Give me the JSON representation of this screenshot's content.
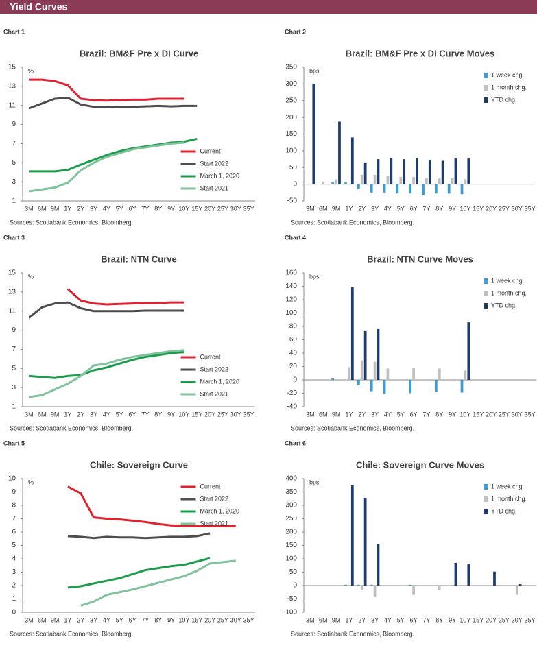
{
  "header": {
    "title": "Yield Curves"
  },
  "chart_data": [
    {
      "type": "line",
      "label": "Chart 1",
      "title": "Brazil: BM&F Pre x DI Curve",
      "y_label": "%",
      "source": "Sources: Scotiabank Economics, Bloomberg.",
      "legend": "lower right",
      "categories": [
        "3M",
        "6M",
        "9M",
        "1Y",
        "2Y",
        "3Y",
        "4Y",
        "5Y",
        "6Y",
        "7Y",
        "8Y",
        "9Y",
        "10Y",
        "15Y",
        "20Y",
        "25Y",
        "30Y",
        "35Y"
      ],
      "ylim": [
        1,
        15
      ],
      "yticks": [
        1,
        3,
        5,
        7,
        9,
        11,
        13,
        15
      ],
      "series": [
        {
          "name": "Current",
          "color": "#e3202e",
          "values": [
            13.7,
            13.7,
            13.55,
            13.1,
            11.7,
            11.55,
            11.5,
            11.55,
            11.6,
            11.6,
            11.7,
            11.7,
            11.7,
            null,
            null,
            null,
            null,
            null
          ]
        },
        {
          "name": "Start 2022",
          "color": "#4d4d4d",
          "values": [
            10.7,
            11.2,
            11.7,
            11.8,
            11.1,
            10.85,
            10.8,
            10.85,
            10.85,
            10.9,
            10.95,
            10.9,
            10.95,
            10.95,
            null,
            null,
            null,
            null
          ]
        },
        {
          "name": "March 1, 2020",
          "color": "#1a9c4a",
          "values": [
            4.1,
            4.1,
            4.1,
            4.25,
            4.8,
            5.3,
            5.8,
            6.2,
            6.5,
            6.7,
            6.9,
            7.1,
            7.2,
            7.5,
            null,
            null,
            null,
            null
          ]
        },
        {
          "name": "Start 2021",
          "color": "#7fc29b",
          "values": [
            2.0,
            2.2,
            2.4,
            2.9,
            4.2,
            5.0,
            5.6,
            6.0,
            6.4,
            6.6,
            6.8,
            7.0,
            7.1,
            null,
            null,
            null,
            null,
            null
          ]
        }
      ]
    },
    {
      "type": "bar",
      "label": "Chart 2",
      "title": "Brazil: BM&F Pre x DI Curve Moves",
      "y_label": "bps",
      "source": "Sources: Scotiabank Economics, Bloomberg.",
      "legend": "upper right",
      "categories": [
        "3M",
        "6M",
        "9M",
        "1Y",
        "2Y",
        "3Y",
        "4Y",
        "5Y",
        "6Y",
        "7Y",
        "8Y",
        "9Y",
        "10Y",
        "15Y",
        "20Y",
        "25Y",
        "30Y",
        "35Y"
      ],
      "ylim": [
        -50,
        350
      ],
      "yticks": [
        -50,
        0,
        50,
        100,
        150,
        200,
        250,
        300,
        350
      ],
      "series": [
        {
          "name": "1 week chg.",
          "color": "#3a9bd5",
          "values": [
            null,
            null,
            5,
            5,
            -15,
            -25,
            -25,
            -28,
            -28,
            -32,
            -28,
            -28,
            -30,
            null,
            null,
            null,
            null,
            null
          ]
        },
        {
          "name": "1 month chg.",
          "color": "#bfbfbf",
          "values": [
            null,
            8,
            15,
            null,
            28,
            28,
            25,
            22,
            22,
            18,
            18,
            18,
            15,
            null,
            null,
            null,
            null,
            null
          ]
        },
        {
          "name": "YTD chg.",
          "color": "#1f3c6e",
          "values": [
            300,
            null,
            187,
            140,
            65,
            75,
            78,
            75,
            78,
            73,
            70,
            77,
            77,
            null,
            null,
            null,
            null,
            null
          ]
        }
      ]
    },
    {
      "type": "line",
      "label": "Chart 3",
      "title": "Brazil: NTN Curve",
      "y_label": "%",
      "source": "Sources: Scotiabank Economics, Bloomberg.",
      "legend": "lower right",
      "categories": [
        "3M",
        "6M",
        "9M",
        "1Y",
        "2Y",
        "3Y",
        "4Y",
        "5Y",
        "6Y",
        "7Y",
        "8Y",
        "9Y",
        "10Y",
        "15Y",
        "20Y",
        "25Y",
        "30Y",
        "35Y"
      ],
      "ylim": [
        1,
        15
      ],
      "yticks": [
        1,
        3,
        5,
        7,
        9,
        11,
        13,
        15
      ],
      "series": [
        {
          "name": "Current",
          "color": "#e3202e",
          "values": [
            null,
            null,
            null,
            13.3,
            12.1,
            11.8,
            11.7,
            11.75,
            11.8,
            11.85,
            11.85,
            11.9,
            11.9,
            null,
            null,
            null,
            null,
            null
          ]
        },
        {
          "name": "Start 2022",
          "color": "#4d4d4d",
          "values": [
            10.3,
            11.4,
            11.8,
            11.9,
            11.3,
            11.0,
            11.0,
            11.0,
            11.0,
            11.05,
            11.05,
            11.05,
            11.05,
            null,
            null,
            null,
            null,
            null
          ]
        },
        {
          "name": "March 1, 2020",
          "color": "#1a9c4a",
          "values": [
            4.2,
            4.1,
            4.0,
            4.2,
            4.3,
            4.8,
            5.1,
            5.5,
            5.9,
            6.2,
            6.4,
            6.6,
            6.7,
            null,
            null,
            null,
            null,
            null
          ]
        },
        {
          "name": "Start 2021",
          "color": "#7fc29b",
          "values": [
            2.0,
            2.2,
            2.8,
            3.4,
            4.2,
            5.3,
            5.5,
            5.9,
            6.2,
            6.4,
            6.6,
            6.8,
            6.9,
            null,
            null,
            null,
            null,
            null
          ]
        }
      ]
    },
    {
      "type": "bar",
      "label": "Chart 4",
      "title": "Brazil: NTN Curve Moves",
      "y_label": "bps",
      "source": "Sources: Scotiabank Economics, Bloomberg.",
      "legend": "upper right",
      "categories": [
        "3M",
        "6M",
        "9M",
        "1Y",
        "2Y",
        "3Y",
        "4Y",
        "5Y",
        "6Y",
        "7Y",
        "8Y",
        "9Y",
        "10Y",
        "15Y",
        "20Y",
        "25Y",
        "30Y",
        "35Y"
      ],
      "ylim": [
        -40,
        160
      ],
      "yticks": [
        -40,
        -20,
        0,
        20,
        40,
        60,
        80,
        100,
        120,
        140,
        160
      ],
      "series": [
        {
          "name": "1 week chg.",
          "color": "#3a9bd5",
          "values": [
            null,
            null,
            2,
            null,
            -8,
            -17,
            -21,
            null,
            -20,
            null,
            -18,
            null,
            -19,
            null,
            null,
            null,
            null,
            null
          ]
        },
        {
          "name": "1 month chg.",
          "color": "#bfbfbf",
          "values": [
            null,
            null,
            null,
            19,
            29,
            27,
            17,
            null,
            18,
            null,
            17,
            null,
            14,
            null,
            null,
            null,
            null,
            null
          ]
        },
        {
          "name": "YTD chg.",
          "color": "#1f3c6e",
          "values": [
            null,
            null,
            null,
            139,
            73,
            76,
            null,
            null,
            null,
            null,
            null,
            null,
            86,
            null,
            null,
            null,
            null,
            null
          ]
        }
      ]
    },
    {
      "type": "line",
      "label": "Chart 5",
      "title": "Chile: Sovereign Curve",
      "y_label": "%",
      "source": "Sources: Scotiabank Economics, Bloomberg.",
      "legend": "upper right",
      "categories": [
        "3M",
        "6M",
        "9M",
        "1Y",
        "2Y",
        "3Y",
        "4Y",
        "5Y",
        "6Y",
        "7Y",
        "8Y",
        "9Y",
        "10Y",
        "15Y",
        "20Y",
        "25Y",
        "30Y",
        "35Y"
      ],
      "ylim": [
        0,
        10
      ],
      "yticks": [
        0,
        1,
        2,
        3,
        4,
        5,
        6,
        7,
        8,
        9,
        10
      ],
      "series": [
        {
          "name": "Current",
          "color": "#e3202e",
          "values": [
            null,
            null,
            null,
            9.4,
            8.9,
            7.1,
            7.0,
            6.95,
            6.85,
            6.75,
            6.6,
            6.5,
            6.45,
            6.45,
            6.45,
            6.45,
            6.45,
            null
          ]
        },
        {
          "name": "Start 2022",
          "color": "#4d4d4d",
          "values": [
            null,
            null,
            null,
            5.7,
            5.65,
            5.55,
            5.65,
            5.6,
            5.6,
            5.55,
            5.6,
            5.65,
            5.65,
            5.7,
            5.9,
            null,
            null,
            null
          ]
        },
        {
          "name": "March 1, 2020",
          "color": "#1a9c4a",
          "values": [
            null,
            null,
            null,
            1.85,
            1.95,
            2.15,
            2.35,
            2.55,
            2.85,
            3.15,
            3.3,
            3.45,
            3.55,
            3.8,
            4.05,
            null,
            null,
            null
          ]
        },
        {
          "name": "Start 2021",
          "color": "#7fc29b",
          "values": [
            null,
            null,
            null,
            null,
            0.5,
            0.8,
            1.3,
            1.5,
            1.7,
            1.95,
            2.2,
            2.45,
            2.7,
            3.1,
            3.65,
            3.75,
            3.85,
            null
          ]
        }
      ]
    },
    {
      "type": "bar",
      "label": "Chart 6",
      "title": "Chile: Sovereign Curve Moves",
      "y_label": "bps",
      "source": "Sources: Scotiabank Economics, Bloomberg.",
      "legend": "upper right",
      "categories": [
        "3M",
        "6M",
        "9M",
        "1Y",
        "2Y",
        "3Y",
        "4Y",
        "5Y",
        "6Y",
        "7Y",
        "8Y",
        "9Y",
        "10Y",
        "15Y",
        "20Y",
        "25Y",
        "30Y",
        "35Y"
      ],
      "ylim": [
        -100,
        400
      ],
      "yticks": [
        -100,
        -50,
        0,
        50,
        100,
        150,
        200,
        250,
        300,
        350,
        400
      ],
      "series": [
        {
          "name": "1 week chg.",
          "color": "#3a9bd5",
          "values": [
            null,
            null,
            null,
            3,
            3,
            3,
            null,
            null,
            3,
            null,
            null,
            null,
            null,
            null,
            null,
            null,
            null,
            null
          ]
        },
        {
          "name": "1 month chg.",
          "color": "#bfbfbf",
          "values": [
            null,
            null,
            null,
            null,
            -15,
            -42,
            null,
            null,
            -35,
            null,
            -18,
            null,
            null,
            null,
            null,
            null,
            -35,
            null
          ]
        },
        {
          "name": "YTD chg.",
          "color": "#1f3c6e",
          "values": [
            null,
            null,
            null,
            375,
            328,
            155,
            null,
            null,
            null,
            null,
            null,
            85,
            80,
            null,
            52,
            null,
            5,
            null
          ]
        }
      ]
    }
  ]
}
